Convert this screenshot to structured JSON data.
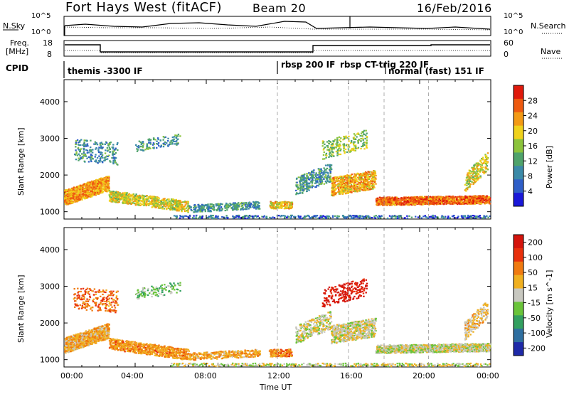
{
  "header": {
    "radar": "Fort Hays West (fitACF)",
    "beam": "Beam 20",
    "date": "16/Feb/2016"
  },
  "noise_panel": {
    "left_label": "N.Sky",
    "right_label": "N.Search",
    "left_ticks": [
      "10^5",
      "10^0"
    ],
    "right_ticks": [
      "10^5",
      "10^0"
    ]
  },
  "freq_panel": {
    "left_label_1": "Freq.",
    "left_label_2": "[MHz]",
    "right_label": "Nave",
    "left_ticks": [
      "18",
      "8"
    ],
    "right_ticks": [
      "60",
      "0"
    ]
  },
  "cpid": {
    "label": "CPID",
    "segments": [
      "themis -3300 IF",
      "rbsp 200 IF",
      "rbsp CT-trig 220 IF",
      "normal (fast) 151 IF"
    ]
  },
  "x_axis": {
    "label": "Time UT",
    "ticks": [
      "00:00",
      "04:00",
      "08:00",
      "12:00",
      "16:00",
      "20:00",
      "00:00"
    ]
  },
  "chart_data": [
    {
      "type": "heatmap",
      "title": "",
      "xlabel": "Time UT",
      "ylabel": "Slant Range [km]",
      "xlim": [
        0,
        24
      ],
      "ylim": [
        800,
        4600
      ],
      "yticks": [
        1000,
        2000,
        3000,
        4000
      ],
      "colorbar": {
        "label": "Power [dB]",
        "ticks": [
          "4",
          "8",
          "12",
          "16",
          "20",
          "24",
          "28"
        ],
        "range": [
          0,
          30
        ],
        "colors": [
          "#1a18d9",
          "#2f5fc8",
          "#3b8aa8",
          "#4fa36b",
          "#8cc43c",
          "#f0d21c",
          "#f39a15",
          "#ee5a10",
          "#e01a0c"
        ]
      }
    },
    {
      "type": "heatmap",
      "title": "",
      "xlabel": "Time UT",
      "ylabel": "Slant Range [km]",
      "xlim": [
        0,
        24
      ],
      "ylim": [
        800,
        4600
      ],
      "yticks": [
        1000,
        2000,
        3000,
        4000
      ],
      "colorbar": {
        "label": "Velocity [m s^-1]",
        "ticks": [
          "200",
          "100",
          "50",
          "15",
          "-15",
          "-50",
          "-100",
          "-200"
        ],
        "colors": [
          "#1f2aa8",
          "#2f6fa0",
          "#33a060",
          "#6ac43a",
          "#c8c8c0",
          "#f0b020",
          "#f07a10",
          "#e8300c",
          "#d4140c"
        ]
      }
    }
  ]
}
